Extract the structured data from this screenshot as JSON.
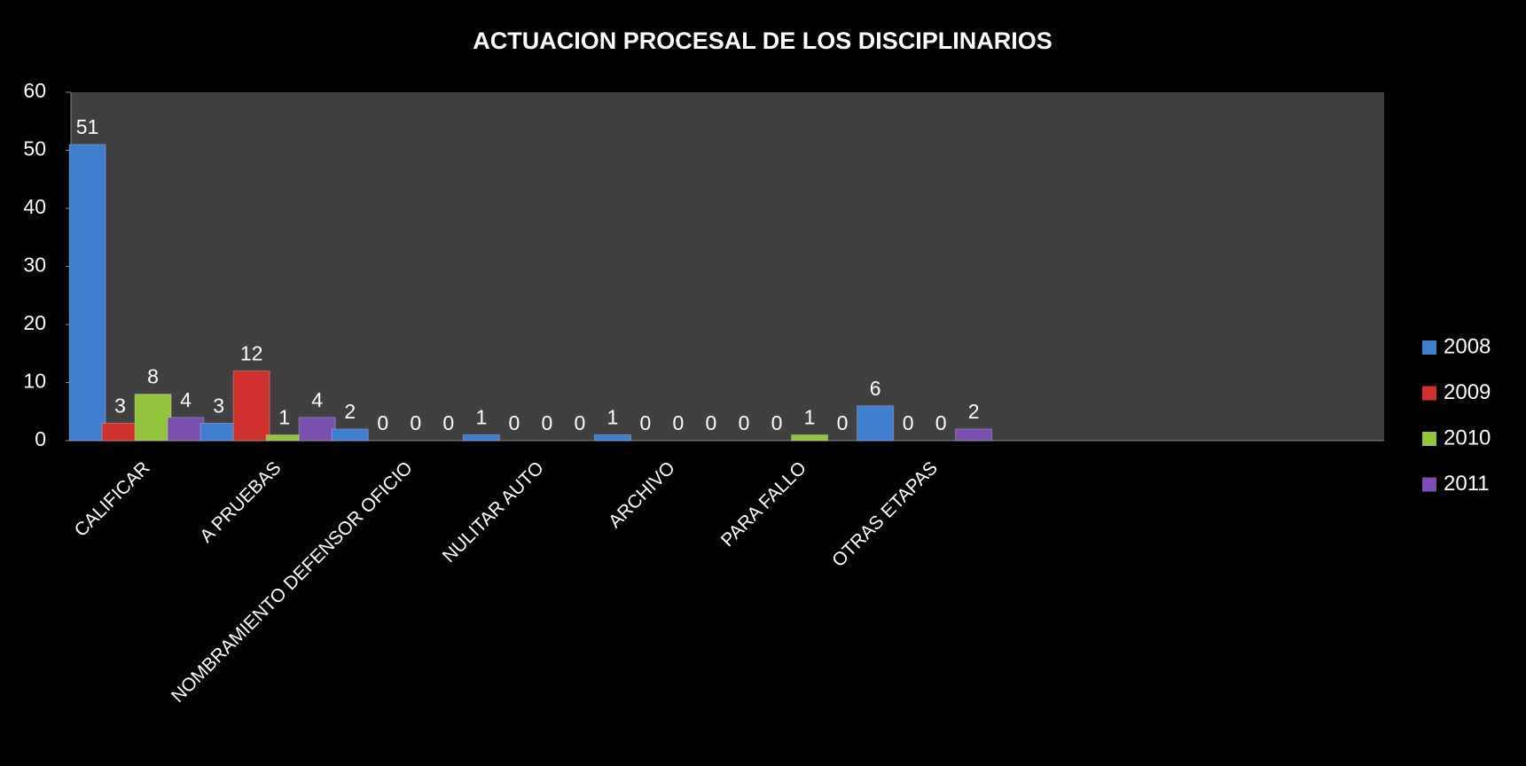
{
  "chart_data": {
    "type": "bar",
    "title": "ACTUACION  PROCESAL DE LOS DISCIPLINARIOS",
    "categories": [
      "CALIFICAR",
      "A PRUEBAS",
      "NOMBRAMIENTO DEFENSOR OFICIO",
      "NULITAR AUTO",
      "ARCHIVO",
      "PARA FALLO",
      "OTRAS ETAPAS",
      null,
      null,
      null
    ],
    "series": [
      {
        "name": "2008",
        "color": "#3f7fd0",
        "values": [
          51,
          3,
          2,
          1,
          1,
          0,
          6,
          null,
          null,
          null
        ]
      },
      {
        "name": "2009",
        "color": "#d0312d",
        "values": [
          3,
          12,
          0,
          0,
          0,
          0,
          0,
          null,
          null,
          null
        ]
      },
      {
        "name": "2010",
        "color": "#92c43c",
        "values": [
          8,
          1,
          0,
          0,
          0,
          1,
          0,
          null,
          null,
          null
        ]
      },
      {
        "name": "2011",
        "color": "#7b4fb0",
        "values": [
          4,
          4,
          0,
          0,
          0,
          0,
          2,
          null,
          null,
          null
        ]
      }
    ],
    "ylim": [
      0,
      60
    ],
    "yticks": [
      0,
      10,
      20,
      30,
      40,
      50,
      60
    ],
    "legend": "right"
  }
}
